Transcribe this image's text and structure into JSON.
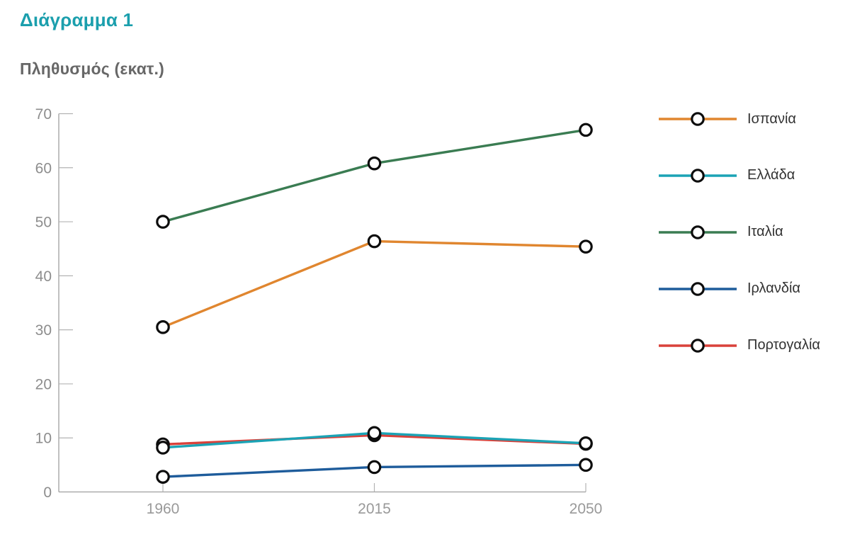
{
  "header": {
    "title": "Διάγραμμα 1",
    "subtitle": "Πληθυσμός (εκατ.)"
  },
  "colors": {
    "title": "#1B9FAD",
    "subtitle": "#676767",
    "axis": "#9E9E9E",
    "tick": "#B3B3B3",
    "y_tick_label": "#8D8D8D",
    "x_tick_label": "#999999",
    "legend_label": "#333333",
    "marker_stroke": "#0D0D0D",
    "marker_fill": "#FFFFFF",
    "background": "#FFFFFF"
  },
  "chart_data": {
    "type": "line",
    "title": "Διάγραμμα 1",
    "ylabel": "Πληθυσμός (εκατ.)",
    "xlabel": "",
    "categories": [
      "1960",
      "2015",
      "2050"
    ],
    "series": [
      {
        "name": "Ισπανία",
        "color": "#E0862F",
        "values": [
          30.5,
          46.4,
          45.4
        ]
      },
      {
        "name": "Ελλάδα",
        "color": "#1BA3B5",
        "values": [
          8.2,
          10.9,
          9.0
        ]
      },
      {
        "name": "Ιταλία",
        "color": "#3A7C52",
        "values": [
          50.0,
          60.8,
          67.0
        ]
      },
      {
        "name": "Ιρλανδία",
        "color": "#1E5C9B",
        "values": [
          2.8,
          4.6,
          5.0
        ]
      },
      {
        "name": "Πορτογαλία",
        "color": "#D9413A",
        "values": [
          8.8,
          10.5,
          8.9
        ]
      }
    ],
    "y_ticks": [
      0,
      10,
      20,
      30,
      40,
      50,
      60,
      70
    ],
    "ylim": [
      0,
      70
    ],
    "grid": false,
    "legend_position": "right",
    "marker": "open-circle",
    "x_spacing": "equal"
  }
}
